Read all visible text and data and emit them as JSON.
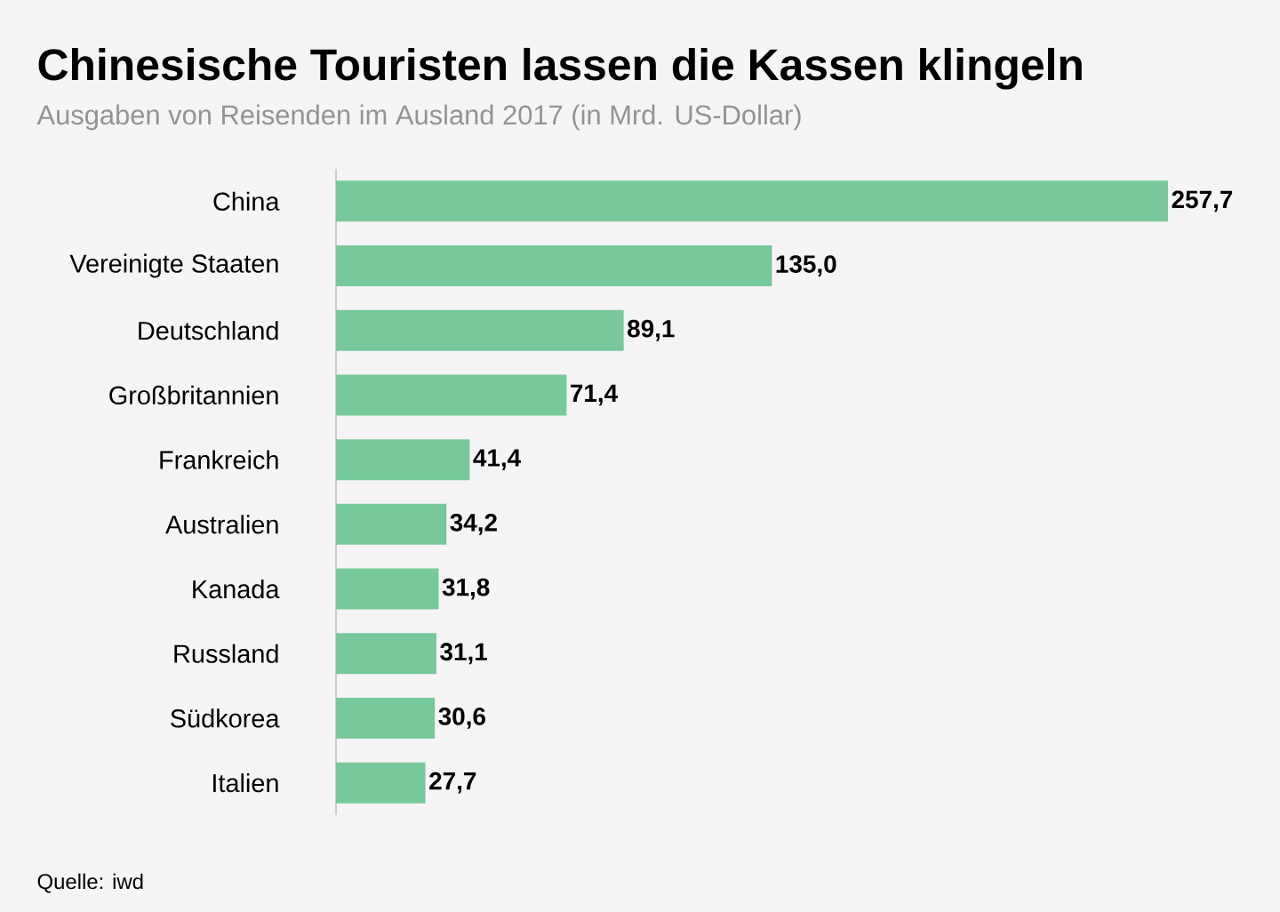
{
  "chart_data": {
    "type": "bar",
    "orientation": "horizontal",
    "title": "Chinesische Touristen lassen die Kassen klingeln",
    "subtitle": "Ausgaben von Reisenden im Ausland 2017 (in Mrd. US-Dollar)",
    "categories": [
      "China",
      "Vereinigte Staaten",
      "Deutschland",
      "Großbritannien",
      "Frankreich",
      "Australien",
      "Kanada",
      "Russland",
      "Südkorea",
      "Italien"
    ],
    "values": [
      257.7,
      135.0,
      89.1,
      71.4,
      41.4,
      34.2,
      31.8,
      31.1,
      30.6,
      27.7
    ],
    "value_labels": [
      "257,7",
      "135,0",
      "89,1",
      "71,4",
      "41,4",
      "34,2",
      "31,8",
      "31,1",
      "30,6",
      "27,7"
    ],
    "color": "#77c89b",
    "annotations": [
      "Quelle: iwd"
    ]
  }
}
